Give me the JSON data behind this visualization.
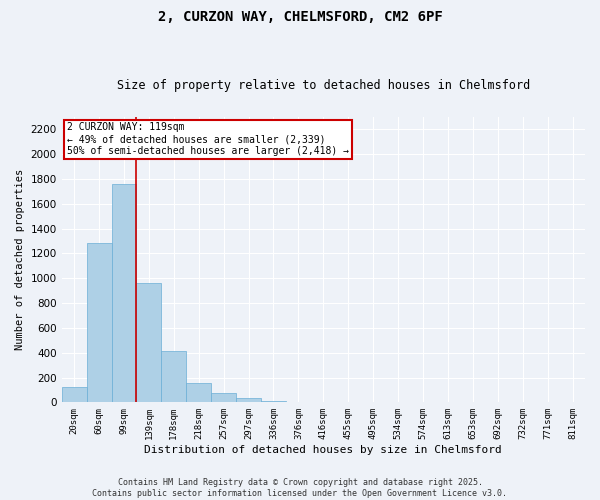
{
  "title": "2, CURZON WAY, CHELMSFORD, CM2 6PF",
  "subtitle": "Size of property relative to detached houses in Chelmsford",
  "xlabel": "Distribution of detached houses by size in Chelmsford",
  "ylabel": "Number of detached properties",
  "footer_line1": "Contains HM Land Registry data © Crown copyright and database right 2025.",
  "footer_line2": "Contains public sector information licensed under the Open Government Licence v3.0.",
  "bin_labels": [
    "20sqm",
    "60sqm",
    "99sqm",
    "139sqm",
    "178sqm",
    "218sqm",
    "257sqm",
    "297sqm",
    "336sqm",
    "376sqm",
    "416sqm",
    "455sqm",
    "495sqm",
    "534sqm",
    "574sqm",
    "613sqm",
    "653sqm",
    "692sqm",
    "732sqm",
    "771sqm",
    "811sqm"
  ],
  "bar_values": [
    120,
    1280,
    1760,
    960,
    415,
    152,
    72,
    32,
    14,
    0,
    0,
    0,
    0,
    0,
    0,
    0,
    0,
    0,
    0,
    0,
    0
  ],
  "bar_color": "#aed0e6",
  "bar_edge_color": "#6aaed6",
  "ylim": [
    0,
    2300
  ],
  "yticks": [
    0,
    200,
    400,
    600,
    800,
    1000,
    1200,
    1400,
    1600,
    1800,
    2000,
    2200
  ],
  "vline_color": "#cc0000",
  "annotation_title": "2 CURZON WAY: 119sqm",
  "annotation_line1": "← 49% of detached houses are smaller (2,339)",
  "annotation_line2": "50% of semi-detached houses are larger (2,418) →",
  "annotation_box_color": "#cc0000",
  "background_color": "#eef2f8",
  "grid_color": "#ffffff"
}
